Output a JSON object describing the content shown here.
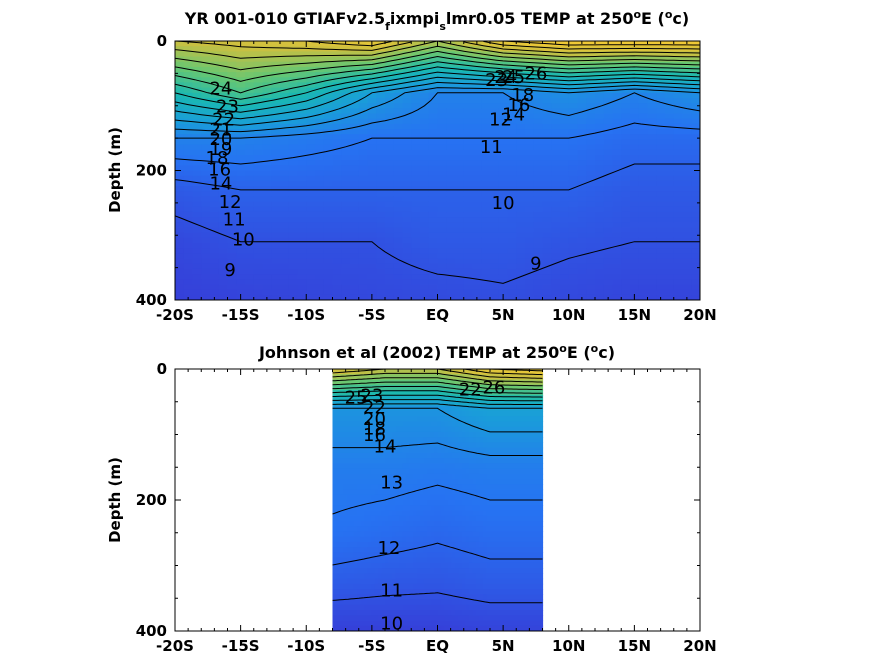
{
  "chart_data": [
    {
      "type": "contour",
      "title_parts": {
        "pre": "YR 001-010 GTIAFv2.5",
        "sub1": "f",
        "mid": "ixmpi",
        "sub2": "s",
        "post1": "lmr0.05 TEMP at 250",
        "sup1": "o",
        "post2": "E (",
        "sup2": "o",
        "post3": "c)"
      },
      "ylabel": "Depth (m)",
      "x_ticks": [
        "-20S",
        "-15S",
        "-10S",
        "-5S",
        "EQ",
        "5N",
        "10N",
        "15N",
        "20N"
      ],
      "x_values": [
        -20,
        -15,
        -10,
        -5,
        0,
        5,
        10,
        15,
        20
      ],
      "y_ticks": [
        "0",
        "200",
        "400"
      ],
      "y_values": [
        0,
        200,
        400
      ],
      "xlim": [
        -20,
        20
      ],
      "ylim": [
        0,
        400
      ],
      "y_reversed": true,
      "colormap": "parula",
      "grid": false,
      "color_levels": [
        {
          "lat": -20,
          "temps": [
            24,
            18,
            13,
            10.5,
            9.5,
            9
          ]
        },
        {
          "lat": -15,
          "temps": [
            24.5,
            20,
            13,
            11,
            10,
            9.2
          ]
        },
        {
          "lat": -10,
          "temps": [
            25,
            18,
            12.5,
            11,
            10,
            9.3
          ]
        },
        {
          "lat": -5,
          "temps": [
            26,
            15,
            12,
            11,
            10,
            9.5
          ]
        },
        {
          "lat": 0,
          "temps": [
            23,
            13,
            12,
            11,
            10.5,
            9.6
          ]
        },
        {
          "lat": 5,
          "temps": [
            26,
            13,
            12,
            11,
            10.5,
            9.8
          ]
        },
        {
          "lat": 10,
          "temps": [
            27,
            14,
            12,
            11,
            10.2,
            9.5
          ]
        },
        {
          "lat": 15,
          "temps": [
            27,
            13,
            11.5,
            10.5,
            10,
            9.3
          ]
        },
        {
          "lat": 20,
          "temps": [
            27,
            14,
            11.5,
            10.5,
            10,
            9.3
          ]
        }
      ],
      "depths": [
        0,
        80,
        150,
        230,
        310,
        400
      ],
      "contour_labels": [
        {
          "text": "24",
          "lat": -16.5,
          "depth": 75
        },
        {
          "text": "23",
          "lat": -16.0,
          "depth": 103
        },
        {
          "text": "22",
          "lat": -16.3,
          "depth": 123
        },
        {
          "text": "21",
          "lat": -16.5,
          "depth": 138
        },
        {
          "text": "20",
          "lat": -16.5,
          "depth": 153
        },
        {
          "text": "19",
          "lat": -16.5,
          "depth": 168
        },
        {
          "text": "18",
          "lat": -16.8,
          "depth": 182
        },
        {
          "text": "16",
          "lat": -16.6,
          "depth": 200
        },
        {
          "text": "14",
          "lat": -16.5,
          "depth": 222
        },
        {
          "text": "12",
          "lat": -15.8,
          "depth": 250
        },
        {
          "text": "11",
          "lat": -15.5,
          "depth": 277
        },
        {
          "text": "10",
          "lat": -14.8,
          "depth": 308
        },
        {
          "text": "9",
          "lat": -15.8,
          "depth": 355
        },
        {
          "text": "23",
          "lat": 4.5,
          "depth": 62
        },
        {
          "text": "24",
          "lat": 5.2,
          "depth": 57
        },
        {
          "text": "25",
          "lat": 5.8,
          "depth": 57
        },
        {
          "text": "26",
          "lat": 7.5,
          "depth": 52
        },
        {
          "text": "18",
          "lat": 6.5,
          "depth": 85
        },
        {
          "text": "16",
          "lat": 6.2,
          "depth": 100
        },
        {
          "text": "14",
          "lat": 5.8,
          "depth": 115
        },
        {
          "text": "12",
          "lat": 4.8,
          "depth": 123
        },
        {
          "text": "11",
          "lat": 4.1,
          "depth": 165
        },
        {
          "text": "10",
          "lat": 5.0,
          "depth": 252
        },
        {
          "text": "9",
          "lat": 7.5,
          "depth": 345
        }
      ]
    },
    {
      "type": "contour",
      "title_parts": {
        "pre": "Johnson et al (2002) TEMP at 250",
        "sup1": "o",
        "mid": "E (",
        "sup2": "o",
        "post": "c)"
      },
      "ylabel": "Depth (m)",
      "x_ticks": [
        "-20S",
        "-15S",
        "-10S",
        "-5S",
        "EQ",
        "5N",
        "10N",
        "15N",
        "20N"
      ],
      "x_values": [
        -20,
        -15,
        -10,
        -5,
        0,
        5,
        10,
        15,
        20
      ],
      "y_ticks": [
        "0",
        "200",
        "400"
      ],
      "y_values": [
        0,
        200,
        400
      ],
      "xlim": [
        -20,
        20
      ],
      "ylim": [
        0,
        400
      ],
      "y_reversed": true,
      "data_xlim": [
        -8,
        8
      ],
      "colormap": "parula",
      "grid": false,
      "color_levels": [
        {
          "lat": -8,
          "temps": [
            25,
            15,
            13.5,
            12.8,
            11.5,
            10
          ]
        },
        {
          "lat": -4,
          "temps": [
            24,
            15,
            13.5,
            12.5,
            11.3,
            10
          ]
        },
        {
          "lat": 0,
          "temps": [
            24,
            15,
            13.3,
            12.2,
            11.2,
            10
          ]
        },
        {
          "lat": 4,
          "temps": [
            26,
            16,
            13.5,
            12.5,
            11.5,
            10.2
          ]
        },
        {
          "lat": 8,
          "temps": [
            26.5,
            16,
            13.5,
            12.5,
            11.5,
            10.2
          ]
        }
      ],
      "depths": [
        0,
        60,
        150,
        250,
        330,
        400
      ],
      "contour_labels": [
        {
          "text": "25",
          "lat": -6.2,
          "depth": 45
        },
        {
          "text": "23",
          "lat": -5.0,
          "depth": 42
        },
        {
          "text": "22",
          "lat": -4.8,
          "depth": 60
        },
        {
          "text": "20",
          "lat": -4.8,
          "depth": 78
        },
        {
          "text": "18",
          "lat": -4.8,
          "depth": 92
        },
        {
          "text": "16",
          "lat": -4.8,
          "depth": 102
        },
        {
          "text": "14",
          "lat": -4.0,
          "depth": 120
        },
        {
          "text": "13",
          "lat": -3.5,
          "depth": 175
        },
        {
          "text": "12",
          "lat": -3.7,
          "depth": 275
        },
        {
          "text": "11",
          "lat": -3.5,
          "depth": 340
        },
        {
          "text": "10",
          "lat": -3.5,
          "depth": 390
        },
        {
          "text": "22",
          "lat": 2.5,
          "depth": 33
        },
        {
          "text": "26",
          "lat": 4.3,
          "depth": 30
        }
      ]
    }
  ]
}
